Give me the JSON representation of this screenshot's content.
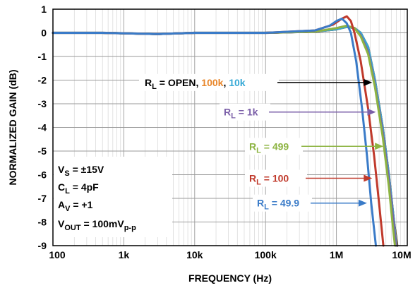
{
  "chart_data": {
    "type": "line",
    "xlabel": "FREQUENCY (Hz)",
    "ylabel": "NORMALIZED GAIN (dB)",
    "x_scale": "log",
    "xlim": [
      100,
      10000000
    ],
    "ylim": [
      -9,
      1
    ],
    "grid": true,
    "x_ticks": [
      {
        "value": 100,
        "label": "100"
      },
      {
        "value": 1000,
        "label": "1k"
      },
      {
        "value": 10000,
        "label": "10k"
      },
      {
        "value": 100000,
        "label": "100k"
      },
      {
        "value": 1000000,
        "label": "1M"
      },
      {
        "value": 10000000,
        "label": "10M"
      }
    ],
    "y_ticks": [
      1,
      0,
      -1,
      -2,
      -3,
      -4,
      -5,
      -6,
      -7,
      -8,
      -9
    ],
    "series": [
      {
        "name": "OPEN",
        "color": "#000000",
        "points": [
          [
            100,
            0
          ],
          [
            500,
            0
          ],
          [
            3000,
            -0.05
          ],
          [
            10000,
            0
          ],
          [
            100000,
            0
          ],
          [
            500000,
            0.05
          ],
          [
            1000000,
            0.15
          ],
          [
            1400000,
            0.25
          ],
          [
            1800000,
            0.2
          ],
          [
            2200000,
            0
          ],
          [
            2800000,
            -0.6
          ],
          [
            3500000,
            -2
          ],
          [
            4500000,
            -4
          ],
          [
            5500000,
            -6
          ],
          [
            6500000,
            -8
          ],
          [
            7200000,
            -9
          ]
        ]
      },
      {
        "name": "100k",
        "color": "#E8862A",
        "points": [
          [
            100,
            0
          ],
          [
            500,
            0
          ],
          [
            3000,
            -0.05
          ],
          [
            10000,
            0
          ],
          [
            100000,
            0
          ],
          [
            500000,
            0.05
          ],
          [
            1000000,
            0.15
          ],
          [
            1400000,
            0.25
          ],
          [
            1800000,
            0.2
          ],
          [
            2200000,
            0
          ],
          [
            2800000,
            -0.6
          ],
          [
            3500000,
            -2
          ],
          [
            4500000,
            -4
          ],
          [
            5500000,
            -6
          ],
          [
            6500000,
            -8
          ],
          [
            7100000,
            -9
          ]
        ]
      },
      {
        "name": "10k",
        "color": "#36A9D6",
        "points": [
          [
            100,
            0
          ],
          [
            500,
            0
          ],
          [
            3000,
            -0.05
          ],
          [
            10000,
            0
          ],
          [
            100000,
            0
          ],
          [
            500000,
            0.05
          ],
          [
            1000000,
            0.15
          ],
          [
            1400000,
            0.25
          ],
          [
            1800000,
            0.2
          ],
          [
            2200000,
            0
          ],
          [
            2800000,
            -0.6
          ],
          [
            3500000,
            -2
          ],
          [
            4500000,
            -4
          ],
          [
            5500000,
            -6
          ],
          [
            6500000,
            -8
          ],
          [
            7000000,
            -9
          ]
        ]
      },
      {
        "name": "1k",
        "color": "#7B5FA8",
        "points": [
          [
            100,
            0
          ],
          [
            500,
            0
          ],
          [
            3000,
            -0.05
          ],
          [
            10000,
            0
          ],
          [
            100000,
            0
          ],
          [
            500000,
            0.05
          ],
          [
            1000000,
            0.2
          ],
          [
            1400000,
            0.3
          ],
          [
            1800000,
            0.2
          ],
          [
            2200000,
            -0.1
          ],
          [
            2800000,
            -0.8
          ],
          [
            3500000,
            -2.2
          ],
          [
            4500000,
            -4.2
          ],
          [
            5500000,
            -6.2
          ],
          [
            6500000,
            -8.2
          ],
          [
            6900000,
            -9
          ]
        ]
      },
      {
        "name": "499",
        "color": "#8DB442",
        "points": [
          [
            100,
            0
          ],
          [
            500,
            0
          ],
          [
            3000,
            -0.05
          ],
          [
            10000,
            0
          ],
          [
            100000,
            0
          ],
          [
            500000,
            0.05
          ],
          [
            1000000,
            0.2
          ],
          [
            1400000,
            0.3
          ],
          [
            1800000,
            0.2
          ],
          [
            2200000,
            -0.15
          ],
          [
            2800000,
            -0.9
          ],
          [
            3500000,
            -2.3
          ],
          [
            4500000,
            -4.4
          ],
          [
            5500000,
            -6.5
          ],
          [
            6300000,
            -8.3
          ],
          [
            6700000,
            -9
          ]
        ]
      },
      {
        "name": "100",
        "color": "#C0392B",
        "points": [
          [
            100,
            0
          ],
          [
            500,
            0
          ],
          [
            3000,
            -0.05
          ],
          [
            10000,
            0
          ],
          [
            100000,
            0
          ],
          [
            500000,
            0.1
          ],
          [
            900000,
            0.35
          ],
          [
            1200000,
            0.6
          ],
          [
            1400000,
            0.7
          ],
          [
            1600000,
            0.5
          ],
          [
            1800000,
            0
          ],
          [
            2200000,
            -1.2
          ],
          [
            2800000,
            -3.2
          ],
          [
            3400000,
            -5.2
          ],
          [
            4000000,
            -7.2
          ],
          [
            4600000,
            -9
          ]
        ]
      },
      {
        "name": "49.9",
        "color": "#3A7BC8",
        "points": [
          [
            100,
            0
          ],
          [
            500,
            0
          ],
          [
            3000,
            -0.05
          ],
          [
            10000,
            0
          ],
          [
            100000,
            0
          ],
          [
            500000,
            0.1
          ],
          [
            800000,
            0.3
          ],
          [
            1000000,
            0.5
          ],
          [
            1200000,
            0.6
          ],
          [
            1400000,
            0.4
          ],
          [
            1600000,
            0
          ],
          [
            1900000,
            -1.2
          ],
          [
            2300000,
            -3.2
          ],
          [
            2700000,
            -5.2
          ],
          [
            3100000,
            -7.2
          ],
          [
            3600000,
            -9
          ]
        ]
      }
    ],
    "annotations": [
      {
        "id": "open",
        "segments": [
          {
            "text": "R",
            "color": "#000000"
          },
          {
            "text": "L",
            "sub": true,
            "color": "#000000"
          },
          {
            "text": " = OPEN, ",
            "color": "#000000"
          },
          {
            "text": "100k",
            "color": "#E8862A"
          },
          {
            "text": ", ",
            "color": "#000000"
          },
          {
            "text": "10k",
            "color": "#36A9D6"
          }
        ],
        "arrow_color": "#000000",
        "arrow_x": 3200000,
        "arrow_y": -2.1
      },
      {
        "id": "1k",
        "segments": [
          {
            "text": "R",
            "color": "#7B5FA8"
          },
          {
            "text": "L",
            "sub": true,
            "color": "#7B5FA8"
          },
          {
            "text": " = 1k",
            "color": "#7B5FA8"
          }
        ],
        "arrow_color": "#7B5FA8",
        "arrow_x": 3600000,
        "arrow_y": -3.35
      },
      {
        "id": "499",
        "segments": [
          {
            "text": "R",
            "color": "#8DB442"
          },
          {
            "text": "L",
            "sub": true,
            "color": "#8DB442"
          },
          {
            "text": " = 499",
            "color": "#8DB442"
          }
        ],
        "arrow_color": "#8DB442",
        "arrow_x": 4600000,
        "arrow_y": -4.8
      },
      {
        "id": "100",
        "segments": [
          {
            "text": "R",
            "color": "#C0392B"
          },
          {
            "text": "L",
            "sub": true,
            "color": "#C0392B"
          },
          {
            "text": " = 100",
            "color": "#C0392B"
          }
        ],
        "arrow_color": "#C0392B",
        "arrow_x": 3200000,
        "arrow_y": -6.15
      },
      {
        "id": "49.9",
        "segments": [
          {
            "text": "R",
            "color": "#3A7BC8"
          },
          {
            "text": "L",
            "sub": true,
            "color": "#3A7BC8"
          },
          {
            "text": " = 49.9",
            "color": "#3A7BC8"
          }
        ],
        "arrow_color": "#3A7BC8",
        "arrow_x": 2700000,
        "arrow_y": -7.2
      }
    ],
    "conditions": [
      [
        {
          "text": "V"
        },
        {
          "text": "S",
          "sub": true
        },
        {
          "text": " = ±15V"
        }
      ],
      [
        {
          "text": "C"
        },
        {
          "text": "L",
          "sub": true
        },
        {
          "text": " = 4pF"
        }
      ],
      [
        {
          "text": "A"
        },
        {
          "text": "V",
          "sub": true
        },
        {
          "text": " = +1"
        }
      ],
      [
        {
          "text": "V"
        },
        {
          "text": "OUT",
          "sub": true
        },
        {
          "text": " = 100mV"
        },
        {
          "text": "p-p",
          "sub": true
        }
      ]
    ]
  }
}
